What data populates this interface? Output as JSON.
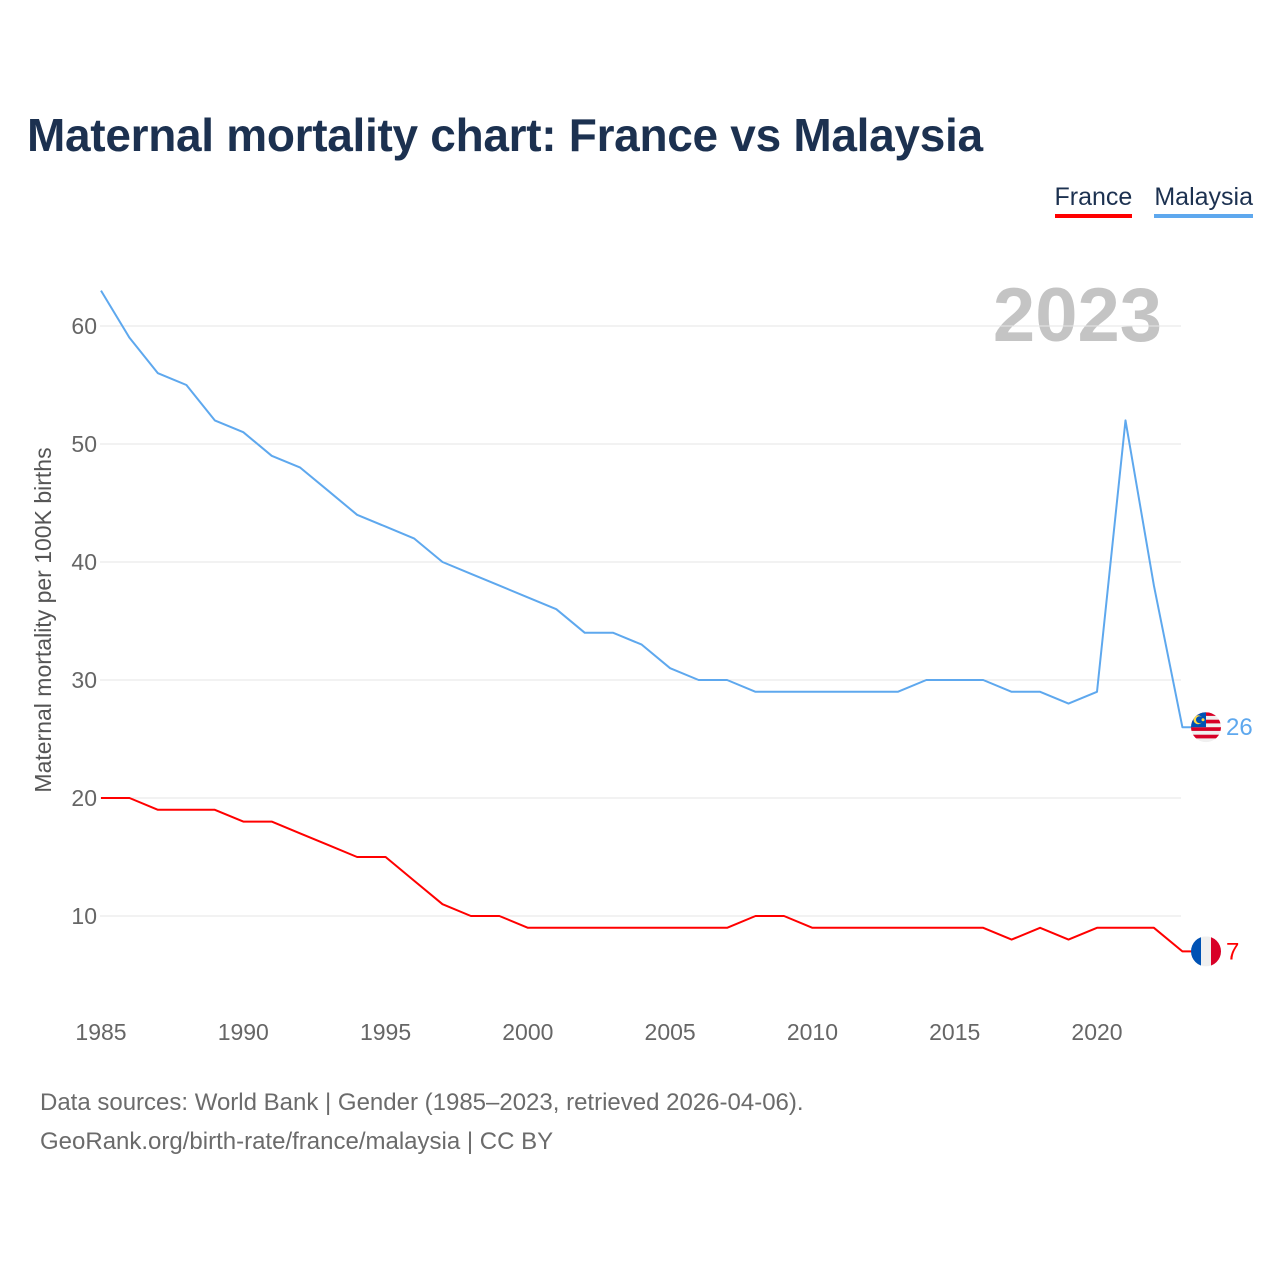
{
  "chart_data": {
    "type": "line",
    "title": "Maternal mortality chart: France vs Malaysia",
    "ylabel": "Maternal mortality per 100K births",
    "xlabel": "",
    "current_year": "2023",
    "xlim": [
      1985,
      2023
    ],
    "ylim": [
      3,
      65
    ],
    "yticks": [
      10,
      20,
      30,
      40,
      50,
      60
    ],
    "xticks": [
      1985,
      1990,
      1995,
      2000,
      2005,
      2010,
      2015,
      2020
    ],
    "grid": true,
    "legend_position": "top-right",
    "x": [
      1985,
      1986,
      1987,
      1988,
      1989,
      1990,
      1991,
      1992,
      1993,
      1994,
      1995,
      1996,
      1997,
      1998,
      1999,
      2000,
      2001,
      2002,
      2003,
      2004,
      2005,
      2006,
      2007,
      2008,
      2009,
      2010,
      2011,
      2012,
      2013,
      2014,
      2015,
      2016,
      2017,
      2018,
      2019,
      2020,
      2021,
      2022,
      2023
    ],
    "series": [
      {
        "name": "France",
        "color": "#ff0000",
        "end_label": "7",
        "values": [
          20,
          20,
          19,
          19,
          19,
          18,
          18,
          17,
          16,
          15,
          15,
          13,
          11,
          10,
          10,
          9,
          9,
          9,
          9,
          9,
          9,
          9,
          9,
          10,
          10,
          9,
          9,
          9,
          9,
          9,
          9,
          9,
          8,
          9,
          8,
          9,
          9,
          9,
          7
        ]
      },
      {
        "name": "Malaysia",
        "color": "#5ea8ee",
        "end_label": "26",
        "values": [
          63,
          59,
          56,
          55,
          52,
          51,
          49,
          48,
          46,
          44,
          43,
          42,
          40,
          39,
          38,
          37,
          36,
          34,
          34,
          33,
          31,
          30,
          30,
          29,
          29,
          29,
          29,
          29,
          29,
          30,
          30,
          30,
          29,
          29,
          28,
          29,
          52,
          38,
          26
        ]
      }
    ]
  },
  "footer": {
    "line1": "Data sources: World Bank | Gender (1985–2023, retrieved 2026-04-06).",
    "line2": "GeoRank.org/birth-rate/france/malaysia | CC BY"
  }
}
